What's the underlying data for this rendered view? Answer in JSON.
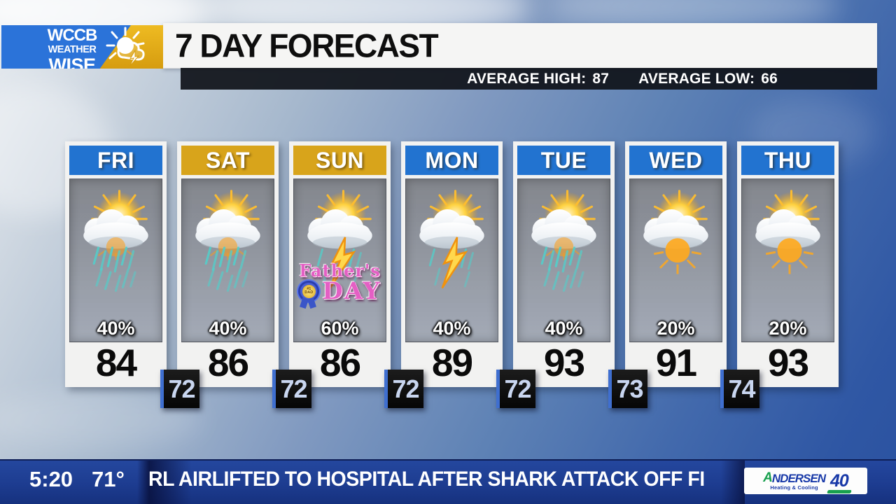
{
  "header": {
    "logo": {
      "line1": "WCCB",
      "line2": "WEATHER",
      "line3": "WISE"
    },
    "title": "7 DAY FORECAST",
    "stats": {
      "high_label": "AVERAGE HIGH:",
      "high_value": "87",
      "low_label": "AVERAGE LOW:",
      "low_value": "66"
    }
  },
  "forecast": {
    "days": [
      {
        "label": "FRI",
        "color": "#2273d0",
        "icon": "rain-sun",
        "precip": "40%",
        "high": "84"
      },
      {
        "label": "SAT",
        "color": "#d8a41b",
        "icon": "rain-sun",
        "precip": "40%",
        "high": "86"
      },
      {
        "label": "SUN",
        "color": "#d8a41b",
        "icon": "storm-sun",
        "precip": "60%",
        "high": "86"
      },
      {
        "label": "MON",
        "color": "#2273d0",
        "icon": "storm-sun",
        "precip": "40%",
        "high": "89"
      },
      {
        "label": "TUE",
        "color": "#2273d0",
        "icon": "rain-sun",
        "precip": "40%",
        "high": "93"
      },
      {
        "label": "WED",
        "color": "#2273d0",
        "icon": "partly-cloudy",
        "precip": "20%",
        "high": "91"
      },
      {
        "label": "THU",
        "color": "#2273d0",
        "icon": "partly-cloudy",
        "precip": "20%",
        "high": "93"
      }
    ],
    "lows": [
      "72",
      "72",
      "72",
      "72",
      "73",
      "74"
    ],
    "fathers_day": {
      "line1": "Father's",
      "line2": "DAY",
      "badge": "#1 DAD"
    }
  },
  "ticker": {
    "time": "5:20",
    "temp": "71°",
    "headline": "RL AIRLIFTED TO HOSPITAL AFTER SHARK ATTACK OFF FLORID",
    "sponsor": {
      "initial": "A",
      "name_rest": "NDERSEN",
      "tagline": "Heating & Cooling",
      "badge": "40"
    }
  },
  "colors": {
    "day_blue": "#2273d0",
    "day_gold": "#d8a41b",
    "low_accent": "#3f6fd0",
    "ticker_blue": "#1d3c90",
    "fathers_pink": "#e45fc4"
  }
}
